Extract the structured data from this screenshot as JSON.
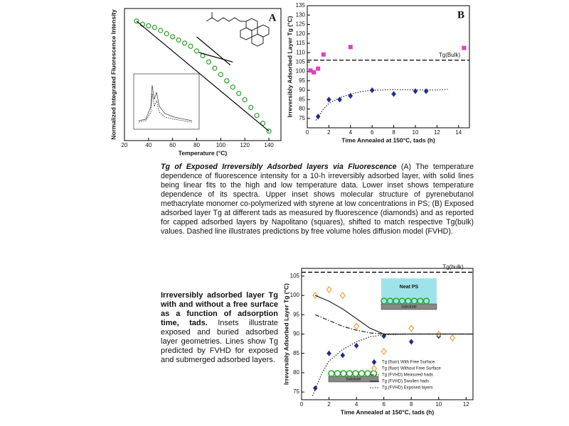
{
  "chart_data": [
    {
      "type": "scatter",
      "panel_label": "A",
      "xlabel": "Temperature (°C)",
      "ylabel": "Normalized Integrated Fluorescence Intensity",
      "xlim": [
        20,
        150
      ],
      "ylim": [
        0.8,
        1.22
      ],
      "xticks": [
        20,
        40,
        60,
        80,
        100,
        120,
        140
      ],
      "series": [
        {
          "marker": "circle",
          "color": "#2e9e2e",
          "x": [
            30,
            35,
            40,
            45,
            50,
            55,
            60,
            65,
            70,
            75,
            80,
            85,
            90,
            95,
            100,
            105,
            110,
            115,
            120,
            125,
            130,
            135,
            140
          ],
          "values": [
            1.18,
            1.17,
            1.165,
            1.16,
            1.15,
            1.14,
            1.13,
            1.12,
            1.11,
            1.1,
            1.085,
            1.07,
            1.05,
            1.03,
            1.01,
            0.99,
            0.97,
            0.95,
            0.93,
            0.905,
            0.88,
            0.855,
            0.83
          ]
        },
        {
          "line": "solid",
          "color": "#000000",
          "x": [
            30,
            140
          ],
          "values": [
            1.18,
            0.83
          ]
        },
        {
          "line": "solid",
          "color": "#000000",
          "x": [
            80,
            108
          ],
          "values": [
            1.13,
            1.04
          ]
        },
        {
          "line": "solid",
          "color": "#000000",
          "x": [
            82,
            110
          ],
          "values": [
            1.08,
            1.05
          ]
        }
      ]
    },
    {
      "type": "scatter",
      "panel_label": "B",
      "xlabel": "Time Annealed at 150°C, tads (h)",
      "ylabel": "Irreversibly Adsorbed Layer Tg (°C)",
      "xlim": [
        0,
        15
      ],
      "ylim": [
        70,
        135
      ],
      "xticks": [
        0,
        2,
        4,
        6,
        8,
        10,
        12,
        14
      ],
      "yticks": [
        75,
        80,
        85,
        90,
        95,
        100,
        105,
        110,
        115,
        120,
        125,
        130,
        135
      ],
      "reference_line": {
        "value": 106,
        "label": "Tg(Bulk)"
      },
      "series": [
        {
          "marker": "square",
          "color": "#e040c0",
          "x": [
            0.3,
            0.6,
            1,
            1.5,
            4,
            14.5
          ],
          "values": [
            100.5,
            99.5,
            101.5,
            109,
            113,
            112.5
          ]
        },
        {
          "marker": "diamond",
          "color": "#1f2f8f",
          "x": [
            1,
            2,
            3,
            4,
            6,
            8,
            10,
            11
          ],
          "values": [
            76,
            85,
            85,
            87,
            90,
            88,
            89.5,
            89.5
          ]
        },
        {
          "line": "dotted",
          "color": "#222222",
          "x": [
            0.8,
            1.5,
            2,
            3,
            4,
            5,
            6,
            8,
            10,
            12,
            13
          ],
          "values": [
            74,
            80,
            83,
            86,
            88,
            89.3,
            90,
            90.3,
            90.2,
            90.1,
            90.5
          ]
        }
      ]
    },
    {
      "type": "scatter",
      "xlabel": "Time Annealed at 150°C, tads (h)",
      "ylabel": "Irreversibly Adsorbed Layer Tg (°C)",
      "xlim": [
        0,
        12.5
      ],
      "ylim": [
        73,
        107
      ],
      "xticks": [
        0,
        2,
        4,
        6,
        8,
        10,
        12
      ],
      "yticks": [
        75,
        80,
        85,
        90,
        95,
        100,
        105
      ],
      "reference_line": {
        "value": 106,
        "label": "Tg(bulk)"
      },
      "legend": "lower right",
      "annotations": [
        "Neat PS",
        "Substrate",
        "Substrate"
      ],
      "series": [
        {
          "name": "Tg (fluor) With Free Surface",
          "marker": "diamond",
          "color": "#1f2f8f",
          "x": [
            1,
            2,
            3,
            4,
            6,
            8,
            10,
            11
          ],
          "values": [
            76,
            85,
            84.5,
            87,
            89.5,
            88,
            89.5,
            89
          ]
        },
        {
          "name": "Tg (fluor) Without Free Surface",
          "marker": "open-diamond",
          "color": "#f0a040",
          "x": [
            1,
            2,
            3,
            4,
            6,
            8,
            10,
            11
          ],
          "values": [
            100,
            101.5,
            100,
            92,
            85.5,
            91.5,
            90,
            89
          ]
        },
        {
          "name": "Tg (FVHD) Measured hads",
          "line": "dashdot",
          "color": "#222222",
          "x": [
            1,
            2,
            3,
            4,
            5,
            6,
            8,
            10,
            12.5
          ],
          "values": [
            95,
            93.5,
            92,
            91,
            90.3,
            90,
            90,
            90,
            90
          ]
        },
        {
          "name": "Tg (FVHD) Swollen hads",
          "line": "solid",
          "color": "#222222",
          "x": [
            1,
            2,
            3,
            4,
            5,
            6,
            8,
            10,
            12.5
          ],
          "values": [
            100,
            98.5,
            96.5,
            94,
            91.5,
            90,
            90,
            90,
            90
          ]
        },
        {
          "name": "Tg (FVHD) Exposed layers",
          "line": "dotted",
          "color": "#222222",
          "x": [
            0.8,
            1.5,
            2,
            3,
            4,
            5,
            6,
            8,
            10,
            12.5
          ],
          "values": [
            74,
            80,
            83,
            86,
            88,
            89.3,
            89.8,
            90,
            90,
            90
          ]
        }
      ]
    }
  ],
  "captions": [
    {
      "title": "Tg of Exposed Irreversibly Adsorbed layers via Fluorescence",
      "body": " (A) The temperature dependence of fluorescence intensity for a 10-h irreversibly adsorbed layer, with solid lines being linear fits to the high and low temperature data. Lower inset shows temperature dependence of its spectra. Upper inset shows molecular structure of pyrenebutanol methacrylate monomer co-polymerized with styrene at low concentrations in PS; (B) Exposed adsorbed layer Tg at different tads as measured by fluorescence (diamonds) and as reported for capped adsorbed layers by Napolitano (squares), shifted to match respective Tg(bulk) values. Dashed line illustrates predictions by free volume holes diffusion model (FVHD)."
    },
    {
      "title": "Irreversibly adsorbed layer Tg with and without a free surface as a function of adsorption time, tads.",
      "body": " Insets illustrate exposed and buried adsorbed layer geometries. Lines show Tg predicted by FVHD for exposed and submerged adsorbed layers."
    }
  ]
}
